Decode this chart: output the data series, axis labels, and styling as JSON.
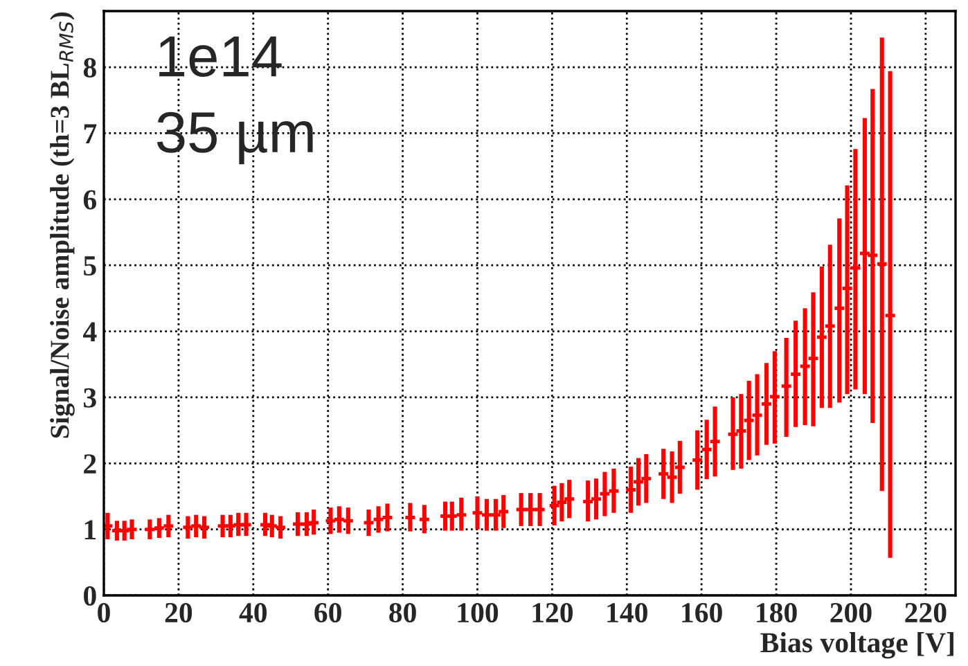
{
  "chart_data": {
    "type": "scatter",
    "xlabel": "Bias voltage [V]",
    "ylabel": "Signal/Noise amplitude (th=3 BL$_{RMS}$)",
    "annotations": [
      "1e14",
      "35 µm"
    ],
    "x": [
      1,
      3.5,
      5.5,
      7.5,
      12.3,
      14.8,
      17.3,
      22.5,
      24.7,
      26.9,
      31.8,
      33.9,
      36,
      38.1,
      43.2,
      45,
      47.3,
      51.9,
      54.3,
      56.2,
      60.7,
      63,
      65.4,
      70.9,
      73.5,
      75.9,
      82,
      85.8,
      91.4,
      93.2,
      95.7,
      100,
      102.5,
      104.9,
      107,
      111.7,
      114.2,
      116.7,
      120.6,
      122.6,
      124.6,
      129.6,
      131.8,
      134.1,
      136.5,
      141.1,
      143.1,
      145.2,
      149.8,
      152.1,
      154.2,
      158.9,
      161.4,
      163.6,
      168.4,
      170.6,
      172.7,
      174.9,
      177.4,
      179.6,
      182.7,
      185.2,
      187.7,
      189.9,
      192.2,
      194.4,
      196.9,
      199.0,
      201.2,
      203.7,
      205.8,
      208.3,
      210.5
    ],
    "series": [
      {
        "color": "#ff0000",
        "values": [
          1.05,
          0.98,
          0.98,
          1.0,
          1.0,
          1.02,
          1.05,
          1.03,
          1.05,
          1.03,
          1.05,
          1.05,
          1.07,
          1.07,
          1.07,
          1.05,
          1.03,
          1.08,
          1.08,
          1.1,
          1.13,
          1.15,
          1.13,
          1.1,
          1.15,
          1.18,
          1.18,
          1.15,
          1.2,
          1.2,
          1.22,
          1.25,
          1.22,
          1.22,
          1.27,
          1.3,
          1.3,
          1.3,
          1.36,
          1.41,
          1.46,
          1.42,
          1.46,
          1.54,
          1.58,
          1.6,
          1.72,
          1.77,
          1.84,
          1.79,
          1.94,
          2.05,
          2.21,
          2.33,
          2.44,
          2.49,
          2.65,
          2.73,
          2.9,
          3.01,
          3.17,
          3.35,
          3.47,
          3.59,
          3.91,
          4.08,
          4.35,
          4.65,
          4.96,
          5.18,
          5.15,
          5.02,
          4.24
        ],
        "errors": [
          [
            0.85,
            1.25
          ],
          [
            0.83,
            1.13
          ],
          [
            0.83,
            1.13
          ],
          [
            0.85,
            1.15
          ],
          [
            0.85,
            1.15
          ],
          [
            0.87,
            1.17
          ],
          [
            0.88,
            1.22
          ],
          [
            0.86,
            1.2
          ],
          [
            0.88,
            1.22
          ],
          [
            0.86,
            1.2
          ],
          [
            0.88,
            1.22
          ],
          [
            0.88,
            1.22
          ],
          [
            0.9,
            1.25
          ],
          [
            0.9,
            1.25
          ],
          [
            0.9,
            1.25
          ],
          [
            0.88,
            1.22
          ],
          [
            0.86,
            1.2
          ],
          [
            0.9,
            1.26
          ],
          [
            0.9,
            1.26
          ],
          [
            0.92,
            1.3
          ],
          [
            0.93,
            1.33
          ],
          [
            0.95,
            1.35
          ],
          [
            0.93,
            1.33
          ],
          [
            0.9,
            1.3
          ],
          [
            0.95,
            1.35
          ],
          [
            0.97,
            1.39
          ],
          [
            0.97,
            1.4
          ],
          [
            0.94,
            1.37
          ],
          [
            0.98,
            1.42
          ],
          [
            0.98,
            1.42
          ],
          [
            0.98,
            1.48
          ],
          [
            1.0,
            1.5
          ],
          [
            0.98,
            1.46
          ],
          [
            0.98,
            1.46
          ],
          [
            1.02,
            1.52
          ],
          [
            1.05,
            1.55
          ],
          [
            1.05,
            1.55
          ],
          [
            1.05,
            1.55
          ],
          [
            1.06,
            1.66
          ],
          [
            1.12,
            1.7
          ],
          [
            1.17,
            1.75
          ],
          [
            1.12,
            1.74
          ],
          [
            1.15,
            1.77
          ],
          [
            1.2,
            1.87
          ],
          [
            1.25,
            1.92
          ],
          [
            1.25,
            1.95
          ],
          [
            1.36,
            2.08
          ],
          [
            1.4,
            2.14
          ],
          [
            1.46,
            2.22
          ],
          [
            1.4,
            2.18
          ],
          [
            1.54,
            2.34
          ],
          [
            1.6,
            2.5
          ],
          [
            1.76,
            2.66
          ],
          [
            1.8,
            2.86
          ],
          [
            1.9,
            3.0
          ],
          [
            1.92,
            3.05
          ],
          [
            2.05,
            3.25
          ],
          [
            2.12,
            3.35
          ],
          [
            2.28,
            3.52
          ],
          [
            2.3,
            3.7
          ],
          [
            2.4,
            3.9
          ],
          [
            2.55,
            4.16
          ],
          [
            2.58,
            4.35
          ],
          [
            2.56,
            4.59
          ],
          [
            2.84,
            4.98
          ],
          [
            2.84,
            5.31
          ],
          [
            2.92,
            5.71
          ],
          [
            3.05,
            6.21
          ],
          [
            3.12,
            6.76
          ],
          [
            3.05,
            7.23
          ],
          [
            2.61,
            7.67
          ],
          [
            1.58,
            8.45
          ],
          [
            0.57,
            7.94
          ]
        ],
        "marker": "cross"
      }
    ],
    "xlim": [
      0,
      228
    ],
    "ylim": [
      0,
      8.85
    ],
    "xticks": [
      0,
      20,
      40,
      60,
      80,
      100,
      120,
      140,
      160,
      180,
      200,
      220
    ],
    "yticks": [
      0,
      1,
      2,
      3,
      4,
      5,
      6,
      7,
      8
    ],
    "grid": true
  }
}
